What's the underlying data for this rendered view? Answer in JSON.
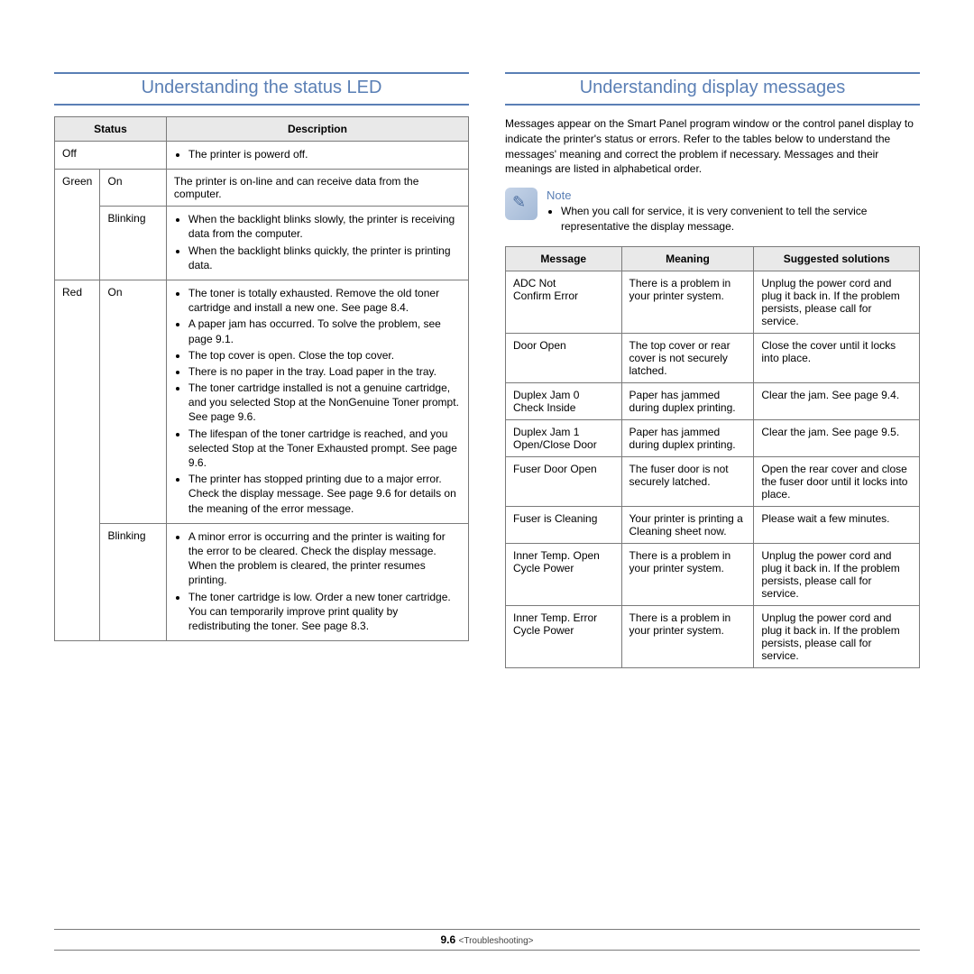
{
  "left": {
    "title": "Understanding the status LED",
    "headers": {
      "status": "Status",
      "desc": "Description"
    },
    "rows": {
      "off": {
        "status": "Off",
        "desc": "The printer is powerd off."
      },
      "green_on": {
        "color": "Green",
        "state": "On",
        "desc": "The printer is on-line and can receive data from the computer."
      },
      "green_blink": {
        "state": "Blinking",
        "bul1": "When the backlight blinks slowly, the printer is receiving data from the computer.",
        "bul2": "When the backlight blinks quickly, the printer is printing data."
      },
      "red_on": {
        "color": "Red",
        "state": "On",
        "bul1": "The toner is totally exhausted. Remove the old toner cartridge and install a new one. See page 8.4.",
        "bul2": "A paper jam has occurred. To solve the problem, see page 9.1.",
        "bul3": "The top cover is open. Close the top cover.",
        "bul4": "There is no paper in the tray. Load paper in the tray.",
        "bul5": "The toner cartridge installed is not a genuine cartridge, and you selected Stop at the NonGenuine Toner prompt. See  page 9.6.",
        "bul6": "The lifespan of the toner cartridge is reached, and you selected Stop at the Toner Exhausted prompt. See  page 9.6.",
        "bul7": "The printer has stopped printing due to a major error. Check the display message. See page 9.6 for details on the meaning of the error message."
      },
      "red_blink": {
        "state": "Blinking",
        "bul1": "A minor error is occurring and the printer is waiting for the error to be cleared. Check the display message. When the problem is cleared, the printer resumes printing.",
        "bul2": "The toner cartridge is low. Order a new toner cartridge. You can temporarily improve print quality by redistributing the toner. See page 8.3."
      }
    }
  },
  "right": {
    "title": "Understanding display messages",
    "intro": "Messages appear on the Smart Panel program window or the control panel display to indicate the printer's status or errors. Refer to the tables below to understand the messages' meaning and correct the problem if necessary. Messages and their meanings are listed in alphabetical order.",
    "note_label": "Note",
    "note_bullet": "When you call for service, it is very convenient to tell the service representative the display message.",
    "headers": {
      "msg": "Message",
      "mean": "Meaning",
      "sol": "Suggested solutions"
    },
    "rows": [
      {
        "msg": "ADC Not\nConfirm Error",
        "mean": "There is a problem in your printer system.",
        "sol": "Unplug the power cord and plug it back in. If the problem persists, please call for service."
      },
      {
        "msg": "Door Open",
        "mean": "The top cover or rear cover is not securely latched.",
        "sol": "Close the cover until it locks into place."
      },
      {
        "msg": "Duplex Jam 0\nCheck Inside",
        "mean": "Paper has jammed during duplex printing.",
        "sol": "Clear the jam. See page 9.4."
      },
      {
        "msg": "Duplex Jam 1\nOpen/Close Door",
        "mean": "Paper has jammed during duplex printing.",
        "sol": "Clear the jam. See page 9.5."
      },
      {
        "msg": "Fuser Door Open",
        "mean": "The fuser door is not securely latched.",
        "sol": "Open the rear cover and close the fuser door until it locks into place."
      },
      {
        "msg": "Fuser is Cleaning",
        "mean": "Your printer is printing a Cleaning sheet now.",
        "sol": "Please wait a few minutes."
      },
      {
        "msg": "Inner Temp. Open\nCycle Power",
        "mean": "There is a problem in your printer system.",
        "sol": "Unplug the power cord and plug it back in. If the problem persists, please call for service."
      },
      {
        "msg": "Inner Temp. Error\nCycle Power",
        "mean": "There is a problem in your printer system.",
        "sol": "Unplug the power cord and plug it back in. If the problem persists, please call for service."
      }
    ]
  },
  "footer": {
    "page": "9.6",
    "chapter": "<Troubleshooting>"
  }
}
